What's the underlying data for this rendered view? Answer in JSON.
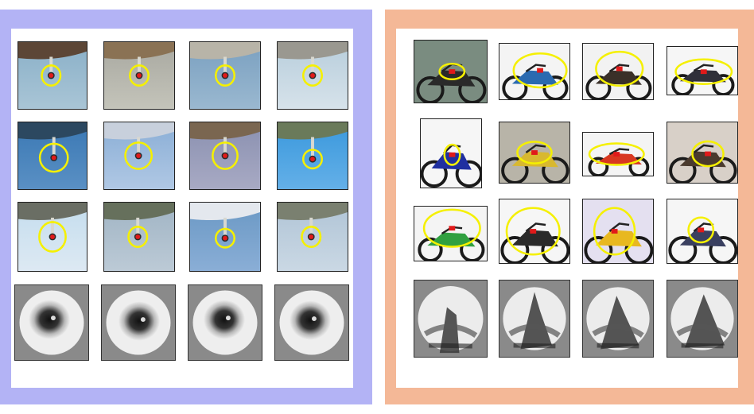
{
  "figure": {
    "left_panel": {
      "background_color": "#b3b3f5",
      "category": "airplane",
      "tiles": [
        {
          "sky": "#8ab0c8",
          "sky2": "#a9c5d6",
          "body": "#5c4636"
        },
        {
          "sky": "#a8a8a0",
          "sky2": "#c4c4ba",
          "body": "#8a7254"
        },
        {
          "sky": "#7aa0c0",
          "sky2": "#9ab8d0",
          "body": "#b8b4a8"
        },
        {
          "sky": "#b8cedc",
          "sky2": "#d6e2ea",
          "body": "#9a9890"
        },
        {
          "sky": "#3a78b4",
          "sky2": "#5a90c4",
          "body": "#2c4860"
        },
        {
          "sky": "#8aaed6",
          "sky2": "#b0c8e4",
          "body": "#c8d0dc"
        },
        {
          "sky": "#8a90b0",
          "sky2": "#a8aac4",
          "body": "#7a6650"
        },
        {
          "sky": "#3a98dc",
          "sky2": "#64b0e8",
          "body": "#6a7a5a"
        },
        {
          "sky": "#c4ddee",
          "sky2": "#dde9f3",
          "body": "#6a6e64"
        },
        {
          "sky": "#a0b4c4",
          "sky2": "#bccad6",
          "body": "#66705c"
        },
        {
          "sky": "#6a98c4",
          "sky2": "#8aaed6",
          "body": "#e4e8ee"
        },
        {
          "sky": "#b0c4d6",
          "sky2": "#cad8e4",
          "body": "#7a8070"
        }
      ],
      "features": [
        "blob",
        "blob",
        "blob",
        "blob"
      ]
    },
    "right_panel": {
      "background_color": "#f4b897",
      "category": "motorbike",
      "tiles": [
        {
          "bg": "#7a8c80",
          "bike": "#2a2a2a"
        },
        {
          "bg": "#f4f4f4",
          "bike": "#2a6ab0"
        },
        {
          "bg": "#f2f2f2",
          "bike": "#3a3028"
        },
        {
          "bg": "#f6f6f6",
          "bike": "#30303a"
        },
        {
          "bg": "#f6f6f6",
          "bike": "#2030a0"
        },
        {
          "bg": "#b8b4a8",
          "bike": "#d8b830"
        },
        {
          "bg": "#f4f4f4",
          "bike": "#d83820"
        },
        {
          "bg": "#d8d0c8",
          "bike": "#4a3a2e"
        },
        {
          "bg": "#f4f4f4",
          "bike": "#30a040"
        },
        {
          "bg": "#f6f6f6",
          "bike": "#2a2a2a"
        },
        {
          "bg": "#e4e0f0",
          "bike": "#e8b820"
        },
        {
          "bg": "#f6f6f6",
          "bike": "#3a4060"
        }
      ],
      "features": [
        "streak",
        "streak",
        "streak",
        "streak"
      ]
    },
    "marker_colors": {
      "ellipse": "#f5f000",
      "part": "#e01a1a"
    }
  }
}
